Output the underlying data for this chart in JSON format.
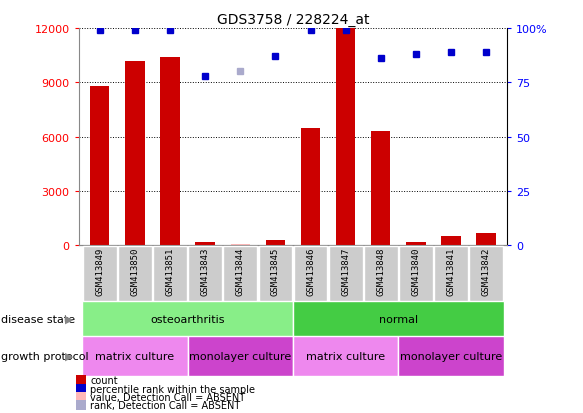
{
  "title": "GDS3758 / 228224_at",
  "samples": [
    "GSM413849",
    "GSM413850",
    "GSM413851",
    "GSM413843",
    "GSM413844",
    "GSM413845",
    "GSM413846",
    "GSM413847",
    "GSM413848",
    "GSM413840",
    "GSM413841",
    "GSM413842"
  ],
  "counts": [
    8800,
    10200,
    10400,
    200,
    50,
    300,
    6500,
    12000,
    6300,
    200,
    500,
    700
  ],
  "absent_count_idx": 4,
  "absent_count_val": 50,
  "percentile_ranks": [
    99,
    99,
    99,
    78,
    null,
    87,
    99,
    99,
    86,
    88,
    89,
    89
  ],
  "absent_rank_idx": 4,
  "absent_rank_val": 80,
  "ylim_left": [
    0,
    12000
  ],
  "ylim_right": [
    0,
    100
  ],
  "yticks_left": [
    0,
    3000,
    6000,
    9000,
    12000
  ],
  "ytick_labels_left": [
    "0",
    "3000",
    "6000",
    "9000",
    "12000"
  ],
  "yticks_right": [
    0,
    25,
    50,
    75,
    100
  ],
  "ytick_labels_right": [
    "0",
    "25",
    "50",
    "75",
    "100%"
  ],
  "bar_color": "#cc0000",
  "bar_absent_color": "#ffb8b8",
  "dot_color": "#0000cc",
  "dot_absent_color": "#aaaacc",
  "disease_state_groups": [
    {
      "label": "osteoarthritis",
      "start": 0,
      "end": 6,
      "color": "#88ee88"
    },
    {
      "label": "normal",
      "start": 6,
      "end": 12,
      "color": "#44cc44"
    }
  ],
  "growth_protocol_groups": [
    {
      "label": "matrix culture",
      "start": 0,
      "end": 3,
      "color": "#ee88ee"
    },
    {
      "label": "monolayer culture",
      "start": 3,
      "end": 6,
      "color": "#cc44cc"
    },
    {
      "label": "matrix culture",
      "start": 6,
      "end": 9,
      "color": "#ee88ee"
    },
    {
      "label": "monolayer culture",
      "start": 9,
      "end": 12,
      "color": "#cc44cc"
    }
  ],
  "disease_state_label": "disease state",
  "growth_protocol_label": "growth protocol",
  "legend_items": [
    {
      "label": "count",
      "color": "#cc0000"
    },
    {
      "label": "percentile rank within the sample",
      "color": "#0000cc"
    },
    {
      "label": "value, Detection Call = ABSENT",
      "color": "#ffb8b8"
    },
    {
      "label": "rank, Detection Call = ABSENT",
      "color": "#aaaacc"
    }
  ],
  "bg_color": "#ffffff",
  "sample_box_color": "#cccccc",
  "sample_box_edge": "#ffffff"
}
